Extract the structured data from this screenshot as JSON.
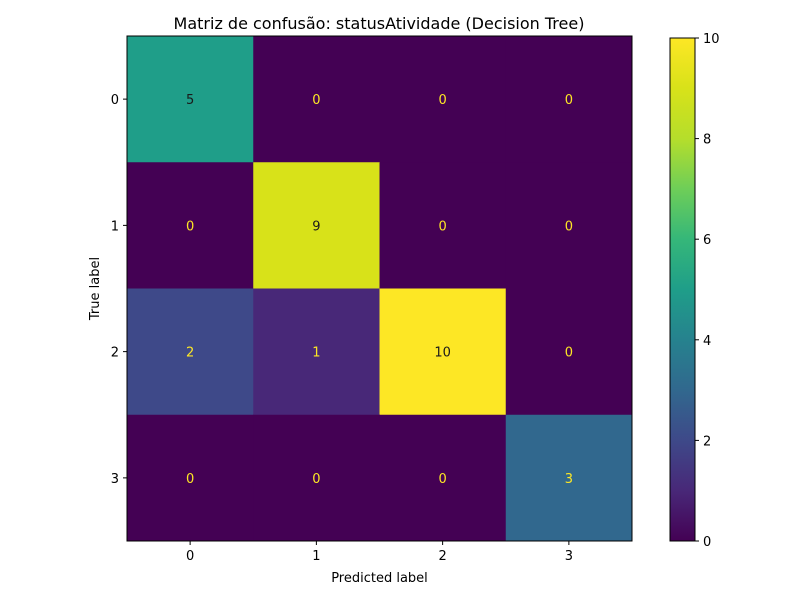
{
  "chart_data": {
    "type": "heatmap",
    "title": "Matriz de confusão: statusAtividade (Decision Tree)",
    "xlabel": "Predicted label",
    "ylabel": "True label",
    "x_tick_labels": [
      "0",
      "1",
      "2",
      "3"
    ],
    "y_tick_labels": [
      "0",
      "1",
      "2",
      "3"
    ],
    "matrix": [
      [
        5,
        0,
        0,
        0
      ],
      [
        0,
        9,
        0,
        0
      ],
      [
        2,
        1,
        10,
        0
      ],
      [
        0,
        0,
        0,
        3
      ]
    ],
    "colormap": "viridis",
    "color_range": [
      0,
      10
    ],
    "colorbar_ticks": [
      "0",
      "2",
      "4",
      "6",
      "8",
      "10"
    ],
    "cell_text_colors": {
      "on_dark": "#fde725",
      "on_light": "#1a1a1a"
    },
    "grid": false,
    "legend": "colorbar-right"
  }
}
